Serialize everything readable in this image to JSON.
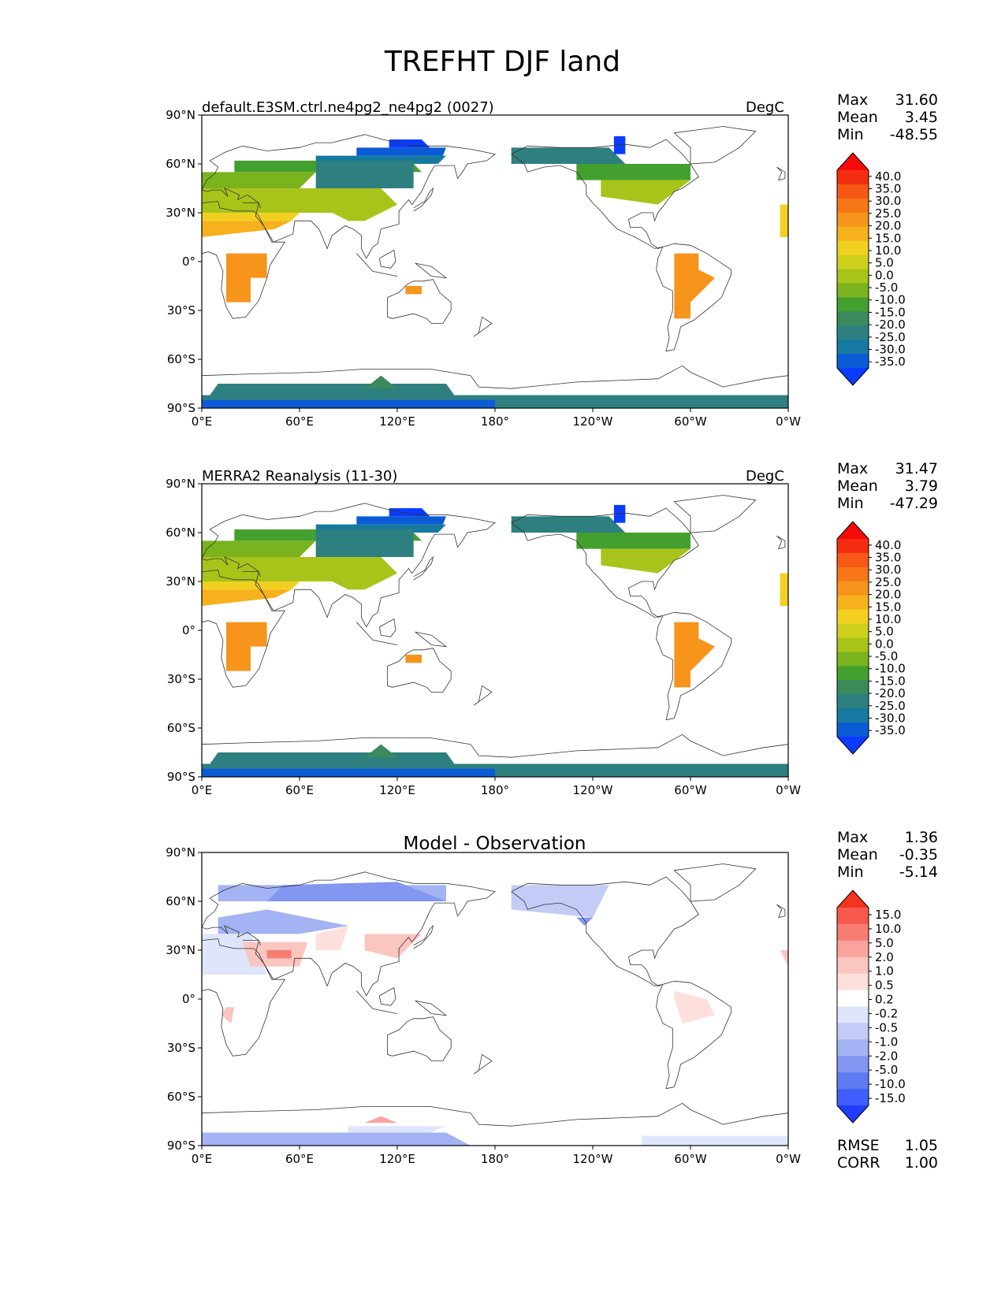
{
  "figure_title": "TREFHT DJF land",
  "panels": [
    {
      "title_left": "default.E3SM.ctrl.ne4pg2_ne4pg2 (0027)",
      "title_right": "DegC",
      "title_center": "",
      "stats": {
        "max_label": "Max",
        "max": "31.60",
        "mean_label": "Mean",
        "mean": "3.45",
        "min_label": "Min",
        "min": "-48.55"
      },
      "colorbar_labels": [
        "40.0",
        "35.0",
        "30.0",
        "25.0",
        "20.0",
        "15.0",
        "10.0",
        "5.0",
        "0.0",
        "-5.0",
        "-10.0",
        "-15.0",
        "-20.0",
        "-25.0",
        "-30.0",
        "-35.0"
      ]
    },
    {
      "title_left": "MERRA2 Reanalysis (11-30)",
      "title_right": "DegC",
      "title_center": "",
      "stats": {
        "max_label": "Max",
        "max": "31.47",
        "mean_label": "Mean",
        "mean": "3.79",
        "min_label": "Min",
        "min": "-47.29"
      },
      "colorbar_labels": [
        "40.0",
        "35.0",
        "30.0",
        "25.0",
        "20.0",
        "15.0",
        "10.0",
        "5.0",
        "0.0",
        "-5.0",
        "-10.0",
        "-15.0",
        "-20.0",
        "-25.0",
        "-30.0",
        "-35.0"
      ]
    },
    {
      "title_left": "",
      "title_right": "",
      "title_center": "Model - Observation",
      "stats": {
        "max_label": "Max",
        "max": "1.36",
        "mean_label": "Mean",
        "mean": "-0.35",
        "min_label": "Min",
        "min": "-5.14"
      },
      "colorbar_labels": [
        "15.0",
        "10.0",
        "5.0",
        "2.0",
        "1.0",
        "0.5",
        "0.2",
        "-0.2",
        "-0.5",
        "-1.0",
        "-2.0",
        "-5.0",
        "-10.0",
        "-15.0"
      ],
      "footer": {
        "rmse_label": "RMSE",
        "rmse": "1.05",
        "corr_label": "CORR",
        "corr": "1.00"
      }
    }
  ],
  "axes": {
    "lat_ticks": [
      "90°N",
      "60°N",
      "30°N",
      "0°",
      "30°S",
      "60°S",
      "90°S"
    ],
    "lon_ticks": [
      "0°E",
      "60°E",
      "120°E",
      "180°",
      "120°W",
      "60°W",
      "0°W"
    ]
  },
  "colors": {
    "temp_ramp": [
      "#0a3cff",
      "#0b5bd6",
      "#167aa0",
      "#2e7f80",
      "#3a8a5c",
      "#44a02e",
      "#7ab31e",
      "#a8c41a",
      "#cfd01c",
      "#f2d021",
      "#f6b11c",
      "#f7941b",
      "#f77618",
      "#f75815",
      "#f52d10",
      "#f50a0a"
    ],
    "diff_ramp": [
      "#1f3cff",
      "#3f5fff",
      "#5f7bf2",
      "#8397f1",
      "#a3b3f3",
      "#c3ccf6",
      "#dfe5fb",
      "#ffffff",
      "#fde0dd",
      "#fbc5c0",
      "#f9a39c",
      "#f77d73",
      "#f55a4d",
      "#f5331f"
    ],
    "coastline": "#333333"
  }
}
